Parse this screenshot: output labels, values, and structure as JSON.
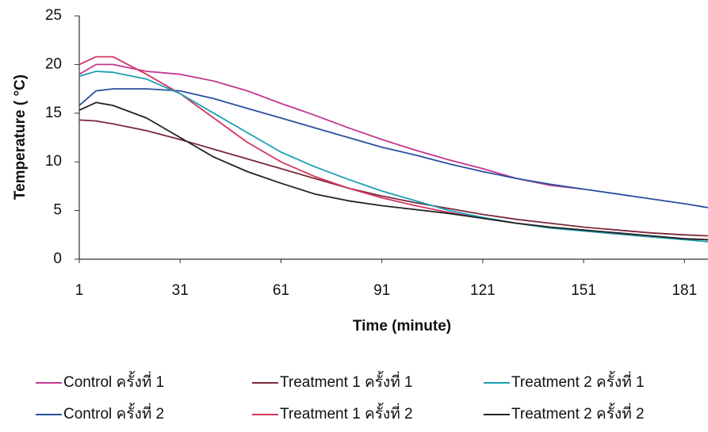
{
  "chart_data": {
    "type": "line",
    "xlabel": "Time (minute)",
    "ylabel": "Temperature ( °C)",
    "x": [
      1,
      6,
      11,
      21,
      31,
      41,
      51,
      61,
      71,
      81,
      91,
      101,
      111,
      121,
      131,
      141,
      151,
      161,
      171,
      181,
      188
    ],
    "xlim": [
      1,
      188
    ],
    "xticks": [
      1,
      31,
      61,
      91,
      121,
      151,
      181
    ],
    "ylim": [
      0,
      25
    ],
    "yticks": [
      0,
      5,
      10,
      15,
      20,
      25
    ],
    "series": [
      {
        "name": "Control ครั้งที่ 1",
        "color": "#c2378f",
        "values": [
          19,
          20,
          20,
          19.3,
          19,
          18.3,
          17.3,
          16,
          14.8,
          13.5,
          12.3,
          11.2,
          10.2,
          9.3,
          8.3,
          7.6,
          7.2,
          null,
          null,
          null,
          null
        ]
      },
      {
        "name": "Control ครั้งที่ 2",
        "color": "#2a4f9f",
        "values": [
          15.8,
          17.3,
          17.5,
          17.5,
          17.3,
          16.5,
          15.5,
          14.5,
          13.5,
          12.5,
          11.5,
          10.7,
          9.8,
          9.0,
          8.3,
          7.7,
          7.2,
          6.7,
          6.2,
          5.7,
          5.3
        ]
      },
      {
        "name": "Treatment 1 ครั้งที่ 1",
        "color": "#7a2a3a",
        "values": [
          14.3,
          14.2,
          13.9,
          13.2,
          12.3,
          11.3,
          10.3,
          9.3,
          8.3,
          7.3,
          6.5,
          5.8,
          5.2,
          4.6,
          4.1,
          3.7,
          3.3,
          3.0,
          2.7,
          2.5,
          2.4
        ]
      },
      {
        "name": "Treatment 1 ครั้งที่ 2",
        "color": "#d4365e",
        "values": [
          20,
          20.8,
          20.8,
          19,
          17,
          14.5,
          12,
          10,
          8.5,
          7.3,
          6.3,
          5.5,
          4.8,
          4.2,
          3.7,
          3.3,
          2.9,
          2.6,
          2.3,
          2.1,
          2.0
        ]
      },
      {
        "name": "Treatment 2 ครั้งที่ 1",
        "color": "#1c9fb5",
        "values": [
          18.8,
          19.3,
          19.2,
          18.5,
          17,
          15,
          13,
          11,
          9.5,
          8.2,
          7,
          6,
          5,
          4.3,
          3.7,
          3.2,
          2.9,
          2.6,
          2.3,
          2.0,
          1.8
        ]
      },
      {
        "name": "Treatment 2 ครั้งที่ 2",
        "color": "#222222",
        "values": [
          15.3,
          16.1,
          15.8,
          14.5,
          12.5,
          10.5,
          9,
          7.8,
          6.7,
          6,
          5.5,
          5.1,
          4.7,
          4.2,
          3.7,
          3.3,
          3.0,
          2.7,
          2.4,
          2.1,
          2.0
        ]
      }
    ]
  }
}
